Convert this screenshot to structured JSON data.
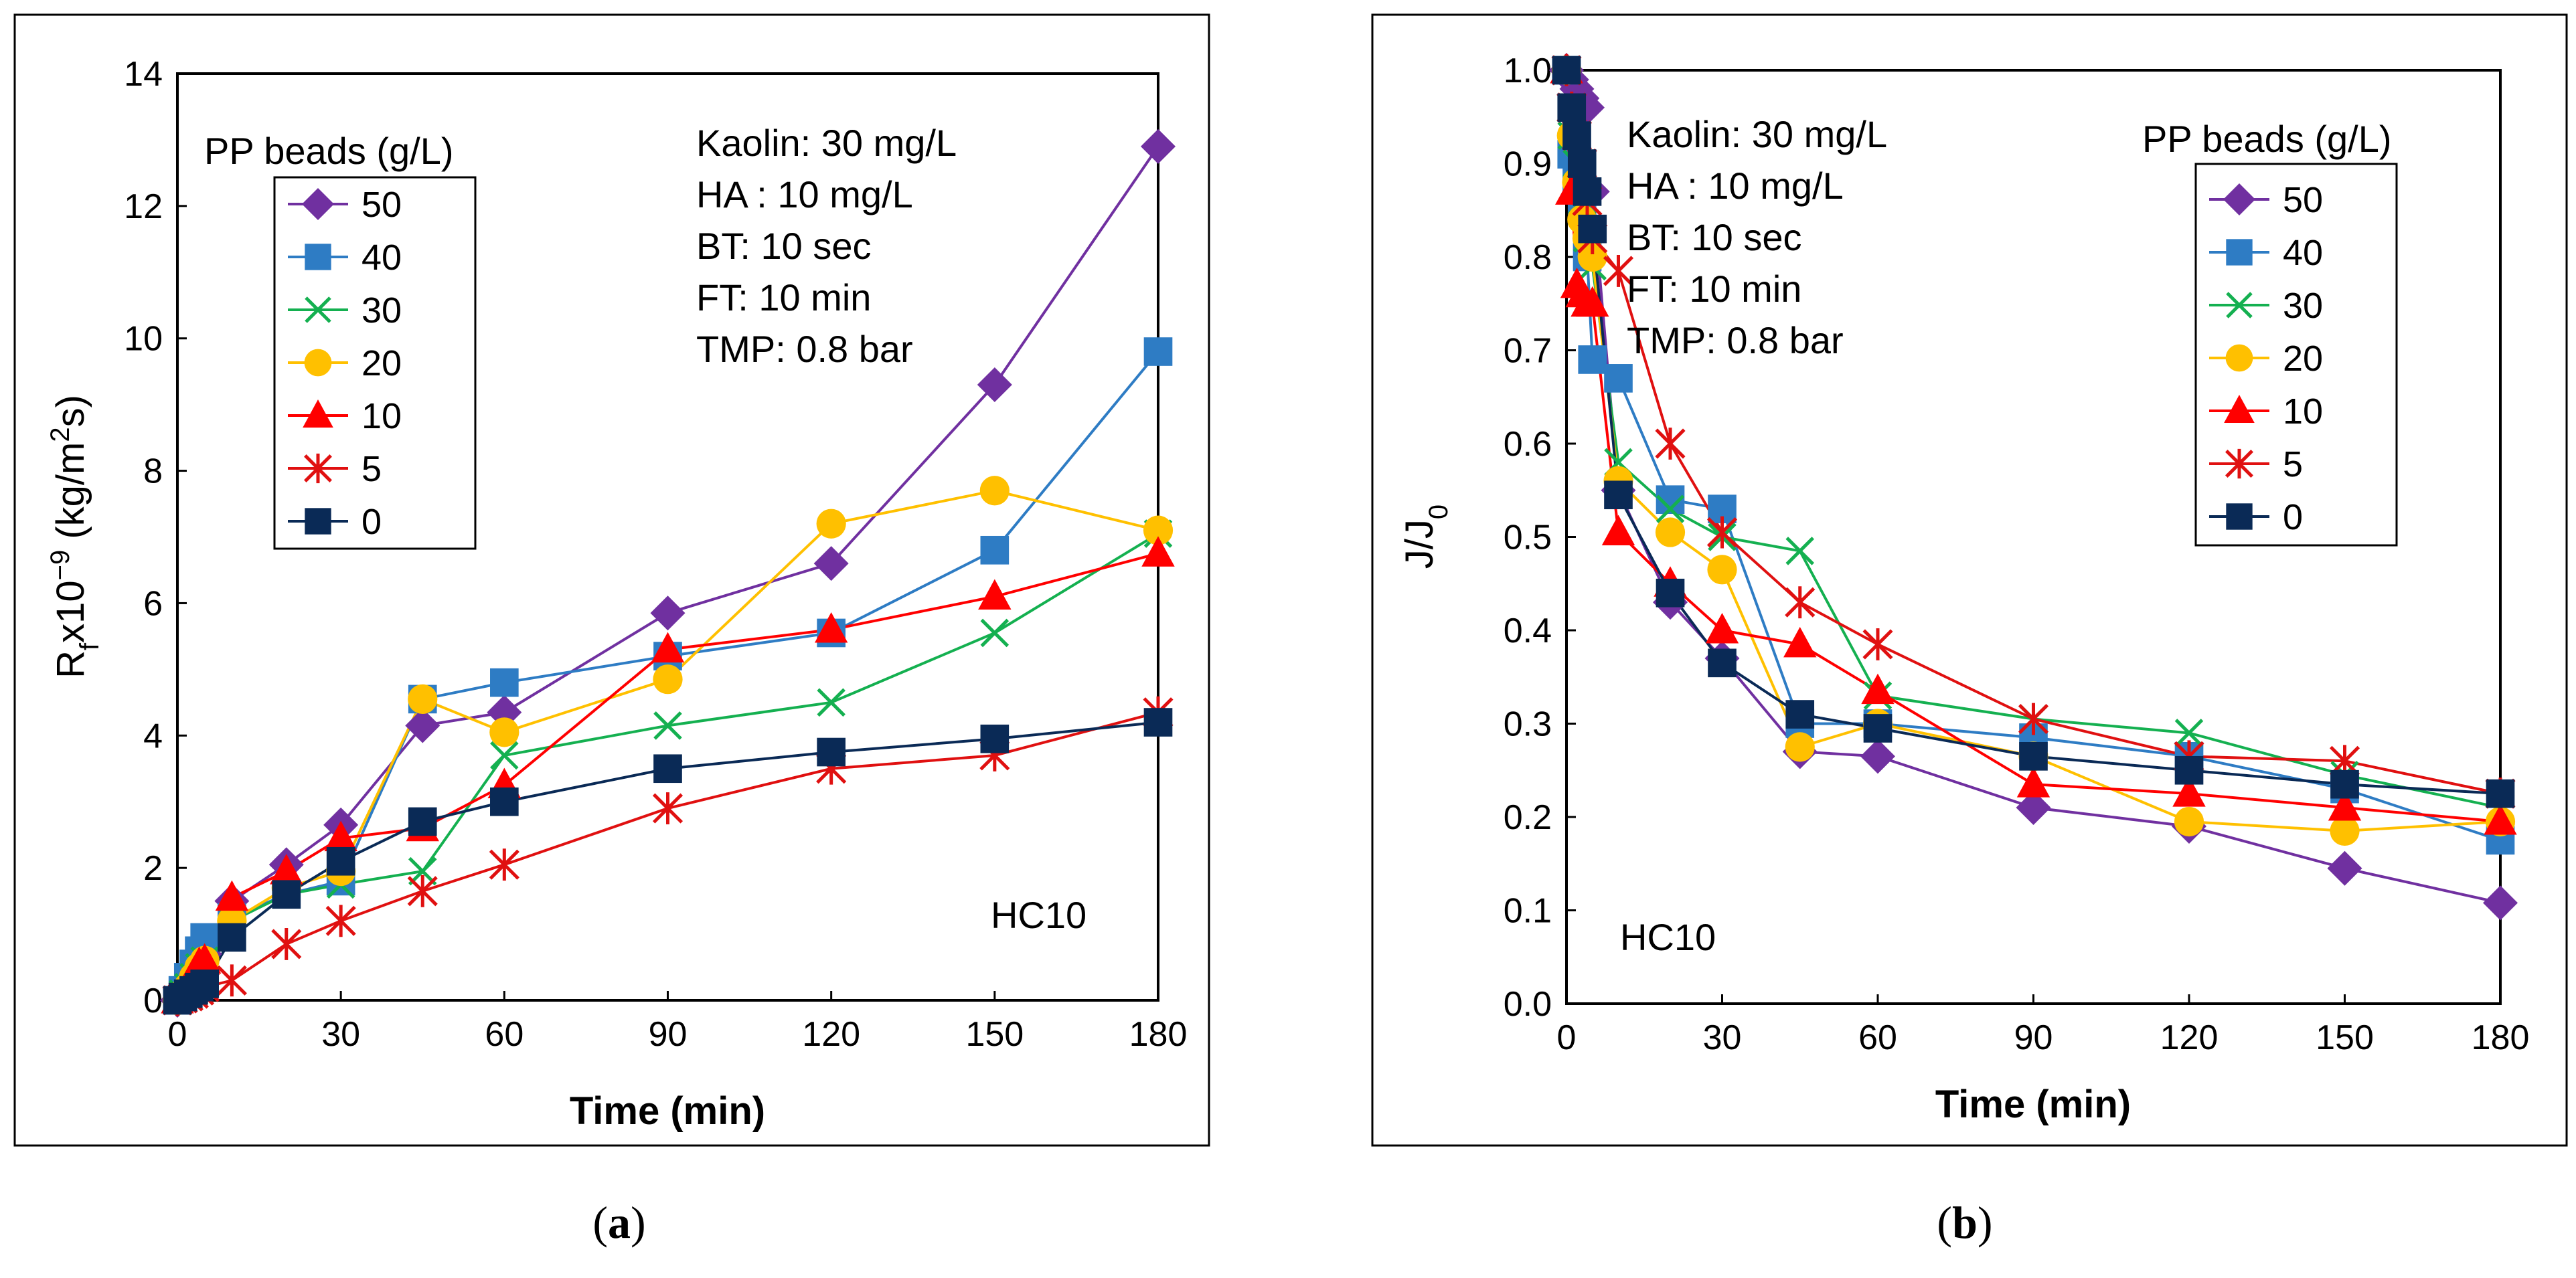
{
  "figure": {
    "caption_a": "(",
    "caption_a_bold": "a",
    "caption_a_end": ")",
    "caption_b": "(",
    "caption_b_bold": "b",
    "caption_b_end": ")"
  },
  "chart_data": [
    {
      "type": "line",
      "panel": "a",
      "xlabel": "Time (min)",
      "ylabel": "Rfx10^-9 (kg/m2s)",
      "ylabel_parts": {
        "main": "R",
        "sub": "f",
        "mid": "x10",
        "sup": "−9",
        "unit_a": " (kg/m",
        "unit_sup": "2",
        "unit_b": "s)"
      },
      "xlim": [
        0,
        180
      ],
      "ylim": [
        0,
        14
      ],
      "xticks": [
        0,
        30,
        60,
        90,
        120,
        150,
        180
      ],
      "yticks": [
        0,
        2,
        4,
        6,
        8,
        10,
        12,
        14
      ],
      "notes": [
        "Kaolin: 30 mg/L",
        "HA : 10 mg/L",
        "BT: 10 sec",
        "FT: 10 min",
        "TMP: 0.8 bar"
      ],
      "code_label": "HC10",
      "legend": {
        "title": "PP beads (g/L)",
        "placement": "upper-left"
      },
      "series": [
        {
          "name": "50",
          "color": "#7030A0",
          "marker": "diamond",
          "x": [
            0,
            1,
            2,
            3,
            4,
            5,
            10,
            20,
            30,
            45,
            60,
            90,
            120,
            150,
            180
          ],
          "y": [
            0,
            0.1,
            0.25,
            0.4,
            0.55,
            0.7,
            1.5,
            2.05,
            2.65,
            4.15,
            4.35,
            5.85,
            6.6,
            9.3,
            12.9
          ]
        },
        {
          "name": "40",
          "color": "#2E7CC4",
          "marker": "square",
          "x": [
            0,
            1,
            2,
            3,
            4,
            5,
            10,
            20,
            30,
            45,
            60,
            90,
            120,
            150,
            180
          ],
          "y": [
            0,
            0.15,
            0.35,
            0.55,
            0.75,
            0.95,
            1.25,
            1.6,
            1.8,
            4.55,
            4.8,
            5.2,
            5.55,
            6.8,
            9.8
          ]
        },
        {
          "name": "30",
          "color": "#14B050",
          "marker": "x",
          "x": [
            0,
            1,
            2,
            3,
            4,
            5,
            10,
            20,
            30,
            45,
            60,
            90,
            120,
            150,
            180
          ],
          "y": [
            0,
            0.1,
            0.2,
            0.35,
            0.5,
            0.6,
            1.2,
            1.6,
            1.75,
            1.95,
            3.7,
            4.15,
            4.5,
            5.55,
            7.05
          ]
        },
        {
          "name": "20",
          "color": "#FFC000",
          "marker": "circle",
          "x": [
            0,
            1,
            2,
            3,
            4,
            5,
            10,
            20,
            30,
            45,
            60,
            90,
            120,
            150,
            180
          ],
          "y": [
            0,
            0.1,
            0.2,
            0.35,
            0.5,
            0.6,
            1.2,
            1.7,
            1.95,
            4.55,
            4.05,
            4.85,
            7.2,
            7.7,
            7.1
          ]
        },
        {
          "name": "10",
          "color": "#FF0000",
          "marker": "triangle",
          "x": [
            0,
            1,
            2,
            3,
            4,
            5,
            10,
            20,
            30,
            45,
            60,
            90,
            120,
            150,
            180
          ],
          "y": [
            0,
            0.1,
            0.25,
            0.4,
            0.55,
            0.6,
            1.55,
            1.95,
            2.45,
            2.6,
            3.25,
            5.3,
            5.6,
            6.1,
            6.75
          ]
        },
        {
          "name": "5",
          "color": "#E01010",
          "marker": "star",
          "x": [
            0,
            1,
            2,
            3,
            4,
            5,
            10,
            20,
            30,
            45,
            60,
            90,
            120,
            150,
            180
          ],
          "y": [
            0,
            0.03,
            0.06,
            0.1,
            0.15,
            0.2,
            0.3,
            0.85,
            1.2,
            1.65,
            2.05,
            2.9,
            3.5,
            3.7,
            4.35
          ]
        },
        {
          "name": "0",
          "color": "#0A2A56",
          "marker": "square",
          "x": [
            0,
            1,
            2,
            3,
            4,
            5,
            10,
            20,
            30,
            45,
            60,
            90,
            120,
            150,
            180
          ],
          "y": [
            0,
            0.05,
            0.1,
            0.15,
            0.2,
            0.25,
            0.95,
            1.6,
            2.1,
            2.7,
            3.0,
            3.5,
            3.75,
            3.95,
            4.2
          ]
        }
      ]
    },
    {
      "type": "line",
      "panel": "b",
      "xlabel": "Time (min)",
      "ylabel": "J/J0",
      "ylabel_parts": {
        "main": "J/J",
        "sub": "0"
      },
      "xlim": [
        0,
        180
      ],
      "ylim": [
        0.0,
        1.0
      ],
      "xticks": [
        0,
        30,
        60,
        90,
        120,
        150,
        180
      ],
      "yticks": [
        "0.0",
        "0.1",
        "0.2",
        "0.3",
        "0.4",
        "0.5",
        "0.6",
        "0.7",
        "0.8",
        "0.9",
        "1.0"
      ],
      "notes": [
        "Kaolin: 30 mg/L",
        "HA : 10 mg/L",
        "BT: 10 sec",
        "FT: 10 min",
        "TMP: 0.8 bar"
      ],
      "code_label": "HC10",
      "legend": {
        "title": "PP beads (g/L)",
        "placement": "upper-right"
      },
      "series": [
        {
          "name": "50",
          "color": "#7030A0",
          "marker": "diamond",
          "x": [
            0,
            1,
            2,
            3,
            4,
            5,
            10,
            20,
            30,
            45,
            60,
            90,
            120,
            150,
            180
          ],
          "y": [
            1.0,
            0.99,
            0.98,
            0.97,
            0.96,
            0.87,
            0.55,
            0.43,
            0.37,
            0.27,
            0.265,
            0.21,
            0.19,
            0.145,
            0.108
          ]
        },
        {
          "name": "40",
          "color": "#2E7CC4",
          "marker": "square",
          "x": [
            0,
            1,
            2,
            3,
            4,
            5,
            10,
            20,
            30,
            45,
            60,
            90,
            120,
            150,
            180
          ],
          "y": [
            1.0,
            0.91,
            0.88,
            0.85,
            0.8,
            0.69,
            0.67,
            0.54,
            0.53,
            0.3,
            0.3,
            0.285,
            0.265,
            0.23,
            0.175
          ]
        },
        {
          "name": "30",
          "color": "#14B050",
          "marker": "x",
          "x": [
            0,
            1,
            2,
            3,
            4,
            5,
            10,
            20,
            30,
            45,
            60,
            90,
            120,
            150,
            180
          ],
          "y": [
            1.0,
            0.93,
            0.9,
            0.86,
            0.82,
            0.79,
            0.58,
            0.53,
            0.5,
            0.485,
            0.33,
            0.305,
            0.29,
            0.245,
            0.21
          ]
        },
        {
          "name": "20",
          "color": "#FFC000",
          "marker": "circle",
          "x": [
            0,
            1,
            2,
            3,
            4,
            5,
            10,
            20,
            30,
            45,
            60,
            90,
            120,
            150,
            180
          ],
          "y": [
            1.0,
            0.93,
            0.88,
            0.84,
            0.82,
            0.8,
            0.56,
            0.505,
            0.465,
            0.275,
            0.3,
            0.265,
            0.195,
            0.185,
            0.195
          ]
        },
        {
          "name": "10",
          "color": "#FF0000",
          "marker": "triangle",
          "x": [
            0,
            1,
            2,
            3,
            4,
            5,
            10,
            20,
            30,
            45,
            60,
            90,
            120,
            150,
            180
          ],
          "y": [
            1.0,
            0.87,
            0.77,
            0.76,
            0.75,
            0.75,
            0.505,
            0.45,
            0.4,
            0.385,
            0.335,
            0.235,
            0.225,
            0.21,
            0.195
          ]
        },
        {
          "name": "5",
          "color": "#E01010",
          "marker": "star",
          "x": [
            0,
            1,
            2,
            3,
            4,
            5,
            10,
            20,
            30,
            45,
            60,
            90,
            120,
            150,
            180
          ],
          "y": [
            1.0,
            0.96,
            0.93,
            0.9,
            0.86,
            0.82,
            0.785,
            0.6,
            0.505,
            0.43,
            0.385,
            0.305,
            0.265,
            0.26,
            0.225
          ]
        },
        {
          "name": "0",
          "color": "#0A2A56",
          "marker": "square",
          "x": [
            0,
            1,
            2,
            3,
            4,
            5,
            10,
            20,
            30,
            45,
            60,
            90,
            120,
            150,
            180
          ],
          "y": [
            1.0,
            0.96,
            0.93,
            0.9,
            0.87,
            0.83,
            0.545,
            0.44,
            0.365,
            0.31,
            0.295,
            0.265,
            0.25,
            0.235,
            0.225
          ]
        }
      ]
    }
  ]
}
